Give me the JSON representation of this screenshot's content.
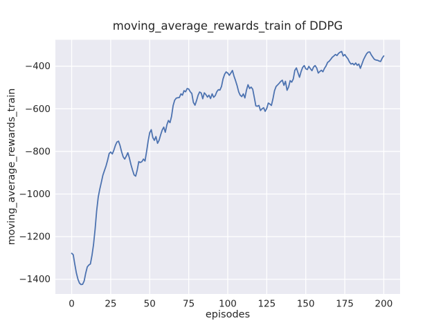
{
  "chart_data": {
    "type": "line",
    "title": "moving_average_rewards_train of DDPG",
    "xlabel": "episodes",
    "ylabel": "moving_average_rewards_train",
    "legend": false,
    "grid": true,
    "x_ticks": [
      0,
      25,
      50,
      75,
      100,
      125,
      150,
      175,
      200
    ],
    "x_tick_labels": [
      "0",
      "25",
      "50",
      "75",
      "100",
      "125",
      "150",
      "175",
      "200"
    ],
    "y_ticks": [
      -400,
      -600,
      -800,
      -1000,
      -1200,
      -1400
    ],
    "y_tick_labels": [
      "−400",
      "−600",
      "−800",
      "−1000",
      "−1200",
      "−1400"
    ],
    "xlim": [
      -10.45,
      210.45
    ],
    "ylim": [
      -1469,
      -276
    ],
    "style": {
      "figure_bg": "#FFFFFF",
      "plot_bg": "#EAEAF2",
      "grid_color": "#FFFFFF",
      "line_color": "#4C72B0",
      "text_color": "#262626"
    },
    "series": [
      {
        "name": "moving_average_rewards_train of DDPG",
        "x_start": 0,
        "x_step": 1,
        "y": [
          -1278,
          -1285,
          -1330,
          -1370,
          -1400,
          -1418,
          -1425,
          -1424,
          -1408,
          -1372,
          -1342,
          -1333,
          -1328,
          -1288,
          -1238,
          -1165,
          -1080,
          -1015,
          -978,
          -945,
          -912,
          -890,
          -868,
          -842,
          -810,
          -803,
          -812,
          -795,
          -772,
          -756,
          -752,
          -772,
          -802,
          -826,
          -836,
          -822,
          -806,
          -832,
          -862,
          -888,
          -910,
          -916,
          -888,
          -848,
          -852,
          -848,
          -836,
          -845,
          -800,
          -752,
          -712,
          -698,
          -735,
          -748,
          -730,
          -762,
          -748,
          -722,
          -700,
          -686,
          -710,
          -675,
          -655,
          -665,
          -636,
          -585,
          -560,
          -550,
          -548,
          -547,
          -530,
          -536,
          -515,
          -520,
          -505,
          -507,
          -520,
          -528,
          -570,
          -583,
          -562,
          -536,
          -521,
          -526,
          -553,
          -525,
          -533,
          -545,
          -536,
          -552,
          -530,
          -546,
          -538,
          -520,
          -510,
          -512,
          -495,
          -460,
          -438,
          -427,
          -432,
          -443,
          -432,
          -420,
          -446,
          -468,
          -491,
          -520,
          -536,
          -543,
          -530,
          -549,
          -512,
          -487,
          -505,
          -498,
          -508,
          -545,
          -586,
          -588,
          -584,
          -608,
          -600,
          -595,
          -612,
          -598,
          -573,
          -578,
          -584,
          -552,
          -515,
          -495,
          -488,
          -480,
          -471,
          -466,
          -490,
          -471,
          -513,
          -498,
          -468,
          -475,
          -460,
          -420,
          -408,
          -430,
          -452,
          -425,
          -406,
          -397,
          -412,
          -416,
          -401,
          -412,
          -421,
          -404,
          -397,
          -408,
          -432,
          -425,
          -419,
          -426,
          -410,
          -399,
          -382,
          -377,
          -368,
          -358,
          -352,
          -345,
          -350,
          -340,
          -334,
          -331,
          -352,
          -345,
          -356,
          -365,
          -380,
          -390,
          -387,
          -394,
          -385,
          -396,
          -390,
          -410,
          -390,
          -370,
          -355,
          -342,
          -334,
          -333,
          -347,
          -358,
          -368,
          -371,
          -372,
          -376,
          -378,
          -362,
          -352
        ]
      }
    ]
  }
}
